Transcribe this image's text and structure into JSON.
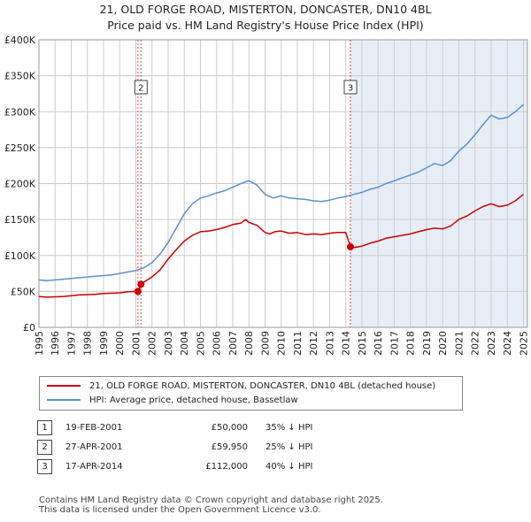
{
  "title_line1": "21, OLD FORGE ROAD, MISTERTON, DONCASTER, DN10 4BL",
  "title_line2": "Price paid vs. HM Land Registry's House Price Index (HPI)",
  "colors": {
    "price": "#cc0000",
    "hpi": "#5b8fcf",
    "shade": "#e8eef8",
    "grid": "#cccccc"
  },
  "chart_data": {
    "type": "line",
    "title": "21, OLD FORGE ROAD, MISTERTON, DONCASTER, DN10 4BL — Price paid vs. HM Land Registry's House Price Index (HPI)",
    "xlabel": "",
    "ylabel": "",
    "xlim": [
      1995,
      2025.25
    ],
    "ylim": [
      0,
      400000
    ],
    "grid": true,
    "x_ticks": [
      "1995",
      "1996",
      "1997",
      "1998",
      "1999",
      "2000",
      "2001",
      "2002",
      "2003",
      "2004",
      "2005",
      "2006",
      "2007",
      "2008",
      "2009",
      "2010",
      "2011",
      "2012",
      "2013",
      "2014",
      "2015",
      "2016",
      "2017",
      "2018",
      "2019",
      "2020",
      "2021",
      "2022",
      "2023",
      "2024",
      "2025"
    ],
    "y_ticks": [
      "£0",
      "£50K",
      "£100K",
      "£150K",
      "£200K",
      "£250K",
      "£300K",
      "£350K",
      "£400K"
    ],
    "y_tick_values": [
      0,
      50000,
      100000,
      150000,
      200000,
      250000,
      300000,
      350000,
      400000
    ],
    "series": [
      {
        "name": "21, OLD FORGE ROAD, MISTERTON, DONCASTER, DN10 4BL (detached house)",
        "x": [
          1995.0,
          1995.5,
          1996.0,
          1996.5,
          1997.0,
          1997.5,
          1998.0,
          1998.5,
          1999.0,
          1999.5,
          2000.0,
          2000.5,
          2001.13,
          2001.32,
          2001.5,
          2002.0,
          2002.5,
          2003.0,
          2003.5,
          2004.0,
          2004.5,
          2005.0,
          2005.5,
          2006.0,
          2006.5,
          2007.0,
          2007.5,
          2007.8,
          2008.0,
          2008.5,
          2009.0,
          2009.3,
          2009.6,
          2010.0,
          2010.5,
          2011.0,
          2011.5,
          2012.0,
          2012.5,
          2013.0,
          2013.5,
          2014.0,
          2014.29,
          2014.5,
          2015.0,
          2015.5,
          2016.0,
          2016.5,
          2017.0,
          2017.5,
          2018.0,
          2018.5,
          2019.0,
          2019.5,
          2020.0,
          2020.5,
          2021.0,
          2021.5,
          2022.0,
          2022.5,
          2023.0,
          2023.5,
          2024.0,
          2024.5,
          2025.0
        ],
        "values": [
          43000,
          42000,
          42500,
          43000,
          44000,
          45000,
          45500,
          46000,
          47000,
          47500,
          48000,
          49500,
          50000,
          59950,
          63000,
          70000,
          80000,
          95000,
          108000,
          120000,
          128000,
          133000,
          134000,
          136000,
          139000,
          143000,
          145000,
          150000,
          146000,
          142000,
          132000,
          130000,
          133000,
          134000,
          131000,
          132000,
          129000,
          130000,
          129000,
          131000,
          132000,
          132000,
          112000,
          111000,
          113000,
          117000,
          120000,
          124000,
          126000,
          128000,
          130000,
          133000,
          136000,
          138000,
          137000,
          141000,
          150000,
          155000,
          162000,
          168000,
          172000,
          168000,
          170000,
          176000,
          185000
        ]
      },
      {
        "name": "HPI: Average price, detached house, Bassetlaw",
        "x": [
          1995.0,
          1995.5,
          1996.0,
          1996.5,
          1997.0,
          1997.5,
          1998.0,
          1998.5,
          1999.0,
          1999.5,
          2000.0,
          2000.5,
          2001.0,
          2001.5,
          2002.0,
          2002.5,
          2003.0,
          2003.5,
          2004.0,
          2004.5,
          2005.0,
          2005.5,
          2006.0,
          2006.5,
          2007.0,
          2007.5,
          2008.0,
          2008.5,
          2009.0,
          2009.5,
          2010.0,
          2010.5,
          2011.0,
          2011.5,
          2012.0,
          2012.5,
          2013.0,
          2013.5,
          2014.0,
          2014.5,
          2015.0,
          2015.5,
          2016.0,
          2016.5,
          2017.0,
          2017.5,
          2018.0,
          2018.5,
          2019.0,
          2019.5,
          2020.0,
          2020.5,
          2021.0,
          2021.5,
          2022.0,
          2022.5,
          2023.0,
          2023.5,
          2024.0,
          2024.5,
          2025.0
        ],
        "values": [
          66000,
          65000,
          66000,
          67000,
          68000,
          69000,
          70000,
          71000,
          72000,
          73000,
          75000,
          77000,
          79000,
          83000,
          90000,
          102000,
          118000,
          138000,
          158000,
          172000,
          180000,
          183000,
          187000,
          190000,
          195000,
          200000,
          204000,
          198000,
          185000,
          180000,
          183000,
          180000,
          179000,
          178000,
          176000,
          175000,
          177000,
          180000,
          182000,
          185000,
          188000,
          192000,
          195000,
          200000,
          204000,
          208000,
          212000,
          216000,
          222000,
          228000,
          225000,
          232000,
          245000,
          255000,
          268000,
          282000,
          295000,
          290000,
          292000,
          300000,
          310000
        ]
      }
    ],
    "sale_markers": [
      {
        "label": "1",
        "x": 2001.13,
        "value": 50000
      },
      {
        "label": "2",
        "x": 2001.32,
        "value": 59950
      },
      {
        "label": "3",
        "x": 2014.29,
        "value": 112000
      }
    ],
    "chart_badges": [
      "2",
      "3"
    ]
  },
  "legend": {
    "price_label": "21, OLD FORGE ROAD, MISTERTON, DONCASTER, DN10 4BL (detached house)",
    "hpi_label": "HPI: Average price, detached house, Bassetlaw"
  },
  "sales": [
    {
      "num": "1",
      "date": "19-FEB-2001",
      "price": "£50,000",
      "hpi": "35% ↓ HPI"
    },
    {
      "num": "2",
      "date": "27-APR-2001",
      "price": "£59,950",
      "hpi": "25% ↓ HPI"
    },
    {
      "num": "3",
      "date": "17-APR-2014",
      "price": "£112,000",
      "hpi": "40% ↓ HPI"
    }
  ],
  "footer_line1": "Contains HM Land Registry data © Crown copyright and database right 2025.",
  "footer_line2": "This data is licensed under the Open Government Licence v3.0."
}
